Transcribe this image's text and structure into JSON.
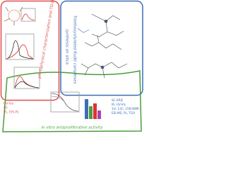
{
  "panels": {
    "photophysics": "photophysical characterization and TD-DFT",
    "synthesis_left": "synthesis on silica",
    "synthesis_right": "Triethoxysilylated Ru(II) complexes",
    "activity": "in vitro antiproliferative activity"
  },
  "methods_left": [
    "UV-Vis",
    "CE",
    "PL, EIS-PL"
  ],
  "methods_right": [
    "SC-XRD",
    "IR, UV-Vis",
    "1H, 13C, 15N NMR",
    "ESI-MS, PL, TGA"
  ]
}
